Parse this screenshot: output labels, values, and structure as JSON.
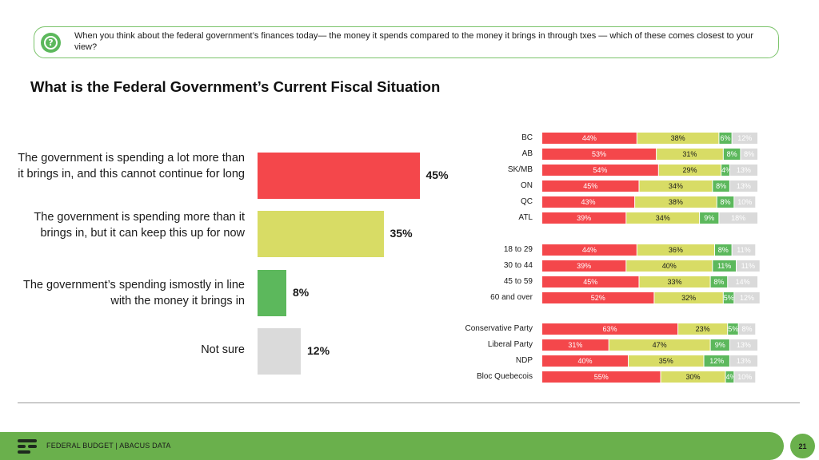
{
  "question": {
    "icon": "question-mark-icon",
    "text": "When you think about the federal government’s finances today— the money it spends compared to the money it brings in through txes — which of these comes closest to your view?"
  },
  "title": "What is the Federal Government’s Current Fiscal Situation",
  "colors": {
    "red": "#f4474b",
    "yellow": "#d8dc65",
    "green": "#5cb85c",
    "gray": "#dadada"
  },
  "chart_data": [
    {
      "type": "bar",
      "orientation": "horizontal",
      "categories": [
        "The government is spending a lot more than it brings in, and this cannot continue for long",
        "The government is spending more than it brings in, but it can keep this up for now",
        "The government’s spending ismostly in line with the money it brings in",
        "Not sure"
      ],
      "values": [
        45,
        35,
        8,
        12
      ],
      "value_labels": [
        "45%",
        "35%",
        "8%",
        "12%"
      ],
      "colors": [
        "#f4474b",
        "#d8dc65",
        "#5cb85c",
        "#dadada"
      ],
      "unit": "%"
    },
    {
      "type": "bar",
      "orientation": "horizontal",
      "stacked": true,
      "groups": [
        {
          "name": "region",
          "rows": [
            {
              "label": "BC",
              "values": [
                44,
                38,
                6,
                12
              ]
            },
            {
              "label": "AB",
              "values": [
                53,
                31,
                8,
                8
              ]
            },
            {
              "label": "SK/MB",
              "values": [
                54,
                29,
                4,
                13
              ]
            },
            {
              "label": "ON",
              "values": [
                45,
                34,
                8,
                13
              ]
            },
            {
              "label": "QC",
              "values": [
                43,
                38,
                8,
                10
              ]
            },
            {
              "label": "ATL",
              "values": [
                39,
                34,
                9,
                18
              ]
            }
          ]
        },
        {
          "name": "age",
          "rows": [
            {
              "label": "18 to 29",
              "values": [
                44,
                36,
                8,
                11
              ]
            },
            {
              "label": "30 to 44",
              "values": [
                39,
                40,
                11,
                11
              ]
            },
            {
              "label": "45 to 59",
              "values": [
                45,
                33,
                8,
                14
              ]
            },
            {
              "label": "60 and over",
              "values": [
                52,
                32,
                5,
                12
              ]
            }
          ]
        },
        {
          "name": "party",
          "rows": [
            {
              "label": "Conservative Party",
              "values": [
                63,
                23,
                5,
                8
              ]
            },
            {
              "label": "Liberal Party",
              "values": [
                31,
                47,
                9,
                13
              ]
            },
            {
              "label": "NDP",
              "values": [
                40,
                35,
                12,
                13
              ]
            },
            {
              "label": "Bloc Quebecois",
              "values": [
                55,
                30,
                4,
                10
              ]
            }
          ]
        }
      ],
      "segment_colors": [
        "#f4474b",
        "#d8dc65",
        "#5cb85c",
        "#dadada"
      ],
      "segment_text_colors": [
        "#ffffff",
        "#1a1a1a",
        "#ffffff",
        "#ffffff"
      ],
      "unit": "%"
    }
  ],
  "footer": {
    "logo_icon": "abacus-logo-icon",
    "text": "FEDERAL BUDGET | ABACUS DATA",
    "page_number": "21"
  }
}
